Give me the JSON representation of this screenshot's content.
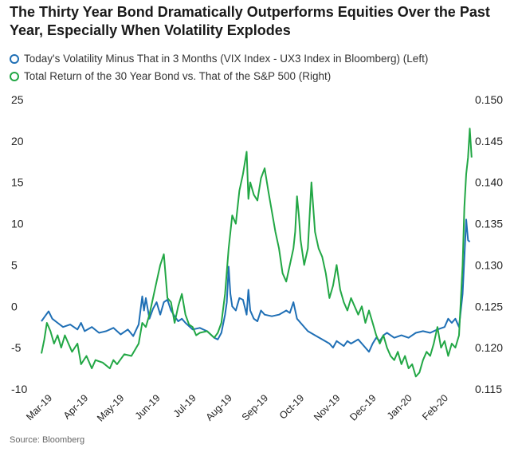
{
  "title": "The Thirty Year Bond Dramatically Outperforms Equities Over the Past Year, Especially When Volatility Explodes",
  "legend": [
    {
      "label": "Today's Volatility Minus That in 3 Months (VIX Index - UX3 Index in Bloomberg) (Left)",
      "color": "#1f6fb5"
    },
    {
      "label": "Total Return of the 30 Year Bond vs. That of the S&P 500 (Right)",
      "color": "#22a745"
    }
  ],
  "source": "Source: Bloomberg",
  "chart_data": {
    "type": "line",
    "x_ticks": [
      "Mar-19",
      "Apr-19",
      "May-19",
      "Jun-19",
      "Jul-19",
      "Aug-19",
      "Sep-19",
      "Oct-19",
      "Nov-19",
      "Dec-19",
      "Jan-20",
      "Feb-20"
    ],
    "y_left": {
      "ticks": [
        -10,
        -5,
        0,
        5,
        10,
        15,
        20,
        25
      ],
      "ylim": [
        -10,
        25
      ]
    },
    "y_right": {
      "ticks": [
        "0.115",
        "0.120",
        "0.125",
        "0.130",
        "0.135",
        "0.140",
        "0.145",
        "0.150"
      ],
      "ylim": [
        0.115,
        0.15
      ]
    },
    "grid": false,
    "legend_position": "top-left",
    "series": [
      {
        "axis": "left",
        "color": "#1f6fb5",
        "points": [
          [
            0.0,
            -1.8
          ],
          [
            0.1,
            -1.2
          ],
          [
            0.2,
            -0.6
          ],
          [
            0.3,
            -1.5
          ],
          [
            0.45,
            -2.0
          ],
          [
            0.6,
            -2.5
          ],
          [
            0.8,
            -2.2
          ],
          [
            1.0,
            -2.8
          ],
          [
            1.1,
            -2.0
          ],
          [
            1.2,
            -3.0
          ],
          [
            1.4,
            -2.5
          ],
          [
            1.6,
            -3.2
          ],
          [
            1.8,
            -3.0
          ],
          [
            2.0,
            -2.6
          ],
          [
            2.2,
            -3.4
          ],
          [
            2.4,
            -2.8
          ],
          [
            2.55,
            -3.6
          ],
          [
            2.7,
            -2.2
          ],
          [
            2.8,
            1.2
          ],
          [
            2.85,
            -0.5
          ],
          [
            2.9,
            1.0
          ],
          [
            3.0,
            -1.5
          ],
          [
            3.1,
            -0.3
          ],
          [
            3.2,
            0.5
          ],
          [
            3.3,
            -1.0
          ],
          [
            3.4,
            0.5
          ],
          [
            3.5,
            0.8
          ],
          [
            3.6,
            -0.5
          ],
          [
            3.7,
            -1.2
          ],
          [
            3.8,
            -1.8
          ],
          [
            3.9,
            -1.5
          ],
          [
            4.0,
            -2.0
          ],
          [
            4.2,
            -2.8
          ],
          [
            4.4,
            -2.6
          ],
          [
            4.6,
            -3.0
          ],
          [
            4.7,
            -3.4
          ],
          [
            4.8,
            -3.8
          ],
          [
            4.9,
            -4.0
          ],
          [
            5.0,
            -3.2
          ],
          [
            5.1,
            -1.0
          ],
          [
            5.15,
            0.5
          ],
          [
            5.2,
            4.8
          ],
          [
            5.25,
            1.5
          ],
          [
            5.3,
            0.0
          ],
          [
            5.4,
            -0.5
          ],
          [
            5.5,
            1.0
          ],
          [
            5.6,
            0.8
          ],
          [
            5.7,
            -1.0
          ],
          [
            5.75,
            2.0
          ],
          [
            5.8,
            -0.5
          ],
          [
            5.9,
            -1.5
          ],
          [
            6.0,
            -1.8
          ],
          [
            6.1,
            -0.5
          ],
          [
            6.2,
            -1.0
          ],
          [
            6.4,
            -1.2
          ],
          [
            6.6,
            -1.0
          ],
          [
            6.8,
            -0.5
          ],
          [
            6.9,
            -0.8
          ],
          [
            7.0,
            0.5
          ],
          [
            7.1,
            -1.5
          ],
          [
            7.2,
            -2.0
          ],
          [
            7.4,
            -3.0
          ],
          [
            7.6,
            -3.5
          ],
          [
            7.8,
            -4.0
          ],
          [
            8.0,
            -4.5
          ],
          [
            8.1,
            -5.0
          ],
          [
            8.2,
            -4.2
          ],
          [
            8.4,
            -4.8
          ],
          [
            8.5,
            -4.2
          ],
          [
            8.6,
            -4.5
          ],
          [
            8.8,
            -4.0
          ],
          [
            9.0,
            -5.0
          ],
          [
            9.1,
            -5.5
          ],
          [
            9.2,
            -4.5
          ],
          [
            9.3,
            -3.8
          ],
          [
            9.4,
            -4.2
          ],
          [
            9.5,
            -3.5
          ],
          [
            9.6,
            -3.2
          ],
          [
            9.8,
            -3.8
          ],
          [
            10.0,
            -3.5
          ],
          [
            10.2,
            -3.8
          ],
          [
            10.4,
            -3.2
          ],
          [
            10.6,
            -3.0
          ],
          [
            10.8,
            -3.2
          ],
          [
            11.0,
            -2.8
          ],
          [
            11.2,
            -2.5
          ],
          [
            11.3,
            -1.5
          ],
          [
            11.4,
            -2.0
          ],
          [
            11.5,
            -1.5
          ],
          [
            11.6,
            -2.5
          ],
          [
            11.7,
            1.5
          ],
          [
            11.8,
            10.5
          ],
          [
            11.85,
            8.0
          ],
          [
            11.9,
            7.8
          ]
        ]
      },
      {
        "axis": "right",
        "color": "#22a745",
        "points": [
          [
            0.0,
            0.1193
          ],
          [
            0.08,
            0.121
          ],
          [
            0.15,
            0.123
          ],
          [
            0.25,
            0.122
          ],
          [
            0.35,
            0.1205
          ],
          [
            0.45,
            0.1215
          ],
          [
            0.55,
            0.12
          ],
          [
            0.65,
            0.1215
          ],
          [
            0.75,
            0.1205
          ],
          [
            0.85,
            0.1195
          ],
          [
            1.0,
            0.1205
          ],
          [
            1.1,
            0.118
          ],
          [
            1.25,
            0.119
          ],
          [
            1.4,
            0.1175
          ],
          [
            1.5,
            0.1185
          ],
          [
            1.7,
            0.1182
          ],
          [
            1.9,
            0.1175
          ],
          [
            2.0,
            0.1185
          ],
          [
            2.1,
            0.118
          ],
          [
            2.3,
            0.1192
          ],
          [
            2.5,
            0.119
          ],
          [
            2.7,
            0.1205
          ],
          [
            2.8,
            0.123
          ],
          [
            2.9,
            0.1225
          ],
          [
            3.0,
            0.124
          ],
          [
            3.1,
            0.126
          ],
          [
            3.2,
            0.128
          ],
          [
            3.3,
            0.13
          ],
          [
            3.4,
            0.1313
          ],
          [
            3.5,
            0.126
          ],
          [
            3.6,
            0.1255
          ],
          [
            3.7,
            0.123
          ],
          [
            3.8,
            0.125
          ],
          [
            3.9,
            0.1265
          ],
          [
            4.0,
            0.124
          ],
          [
            4.1,
            0.1228
          ],
          [
            4.2,
            0.1225
          ],
          [
            4.3,
            0.1215
          ],
          [
            4.4,
            0.1218
          ],
          [
            4.6,
            0.122
          ],
          [
            4.8,
            0.1212
          ],
          [
            4.9,
            0.1218
          ],
          [
            5.0,
            0.123
          ],
          [
            5.1,
            0.1265
          ],
          [
            5.2,
            0.132
          ],
          [
            5.3,
            0.136
          ],
          [
            5.4,
            0.135
          ],
          [
            5.5,
            0.139
          ],
          [
            5.6,
            0.141
          ],
          [
            5.7,
            0.1437
          ],
          [
            5.75,
            0.138
          ],
          [
            5.8,
            0.14
          ],
          [
            5.9,
            0.1385
          ],
          [
            6.0,
            0.1378
          ],
          [
            6.1,
            0.1405
          ],
          [
            6.2,
            0.1417
          ],
          [
            6.3,
            0.139
          ],
          [
            6.4,
            0.1365
          ],
          [
            6.5,
            0.134
          ],
          [
            6.6,
            0.132
          ],
          [
            6.7,
            0.129
          ],
          [
            6.8,
            0.128
          ],
          [
            6.9,
            0.13
          ],
          [
            7.0,
            0.132
          ],
          [
            7.05,
            0.134
          ],
          [
            7.1,
            0.1383
          ],
          [
            7.15,
            0.136
          ],
          [
            7.2,
            0.133
          ],
          [
            7.3,
            0.13
          ],
          [
            7.4,
            0.132
          ],
          [
            7.5,
            0.14
          ],
          [
            7.6,
            0.134
          ],
          [
            7.7,
            0.132
          ],
          [
            7.8,
            0.131
          ],
          [
            7.9,
            0.129
          ],
          [
            8.0,
            0.126
          ],
          [
            8.1,
            0.1275
          ],
          [
            8.2,
            0.13
          ],
          [
            8.3,
            0.127
          ],
          [
            8.4,
            0.1255
          ],
          [
            8.5,
            0.1245
          ],
          [
            8.6,
            0.126
          ],
          [
            8.7,
            0.125
          ],
          [
            8.8,
            0.124
          ],
          [
            8.9,
            0.125
          ],
          [
            9.0,
            0.123
          ],
          [
            9.1,
            0.1245
          ],
          [
            9.2,
            0.123
          ],
          [
            9.3,
            0.1215
          ],
          [
            9.4,
            0.1205
          ],
          [
            9.5,
            0.1215
          ],
          [
            9.6,
            0.12
          ],
          [
            9.7,
            0.119
          ],
          [
            9.8,
            0.1185
          ],
          [
            9.9,
            0.1195
          ],
          [
            10.0,
            0.118
          ],
          [
            10.1,
            0.119
          ],
          [
            10.2,
            0.1175
          ],
          [
            10.3,
            0.118
          ],
          [
            10.4,
            0.1165
          ],
          [
            10.5,
            0.117
          ],
          [
            10.6,
            0.1185
          ],
          [
            10.7,
            0.1195
          ],
          [
            10.8,
            0.119
          ],
          [
            10.9,
            0.1205
          ],
          [
            11.0,
            0.1225
          ],
          [
            11.1,
            0.12
          ],
          [
            11.2,
            0.1208
          ],
          [
            11.3,
            0.119
          ],
          [
            11.4,
            0.1205
          ],
          [
            11.5,
            0.12
          ],
          [
            11.6,
            0.1215
          ],
          [
            11.7,
            0.13
          ],
          [
            11.75,
            0.137
          ],
          [
            11.8,
            0.141
          ],
          [
            11.85,
            0.143
          ],
          [
            11.9,
            0.1465
          ],
          [
            11.95,
            0.143
          ]
        ]
      }
    ]
  }
}
